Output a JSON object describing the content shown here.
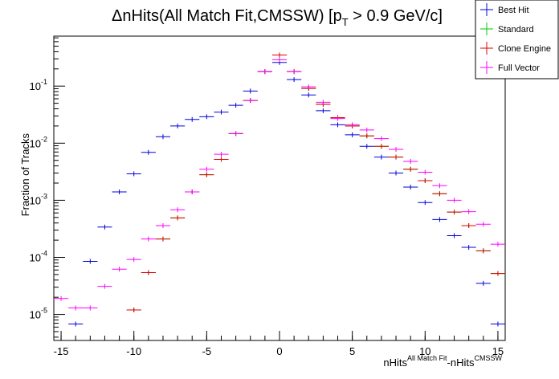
{
  "chart_data": {
    "type": "errorpoints",
    "title": {
      "text": "ΔnHits(All Match Fit,CMSSW) [p",
      "sub": "T",
      "rest": " > 0.9 GeV/c]"
    },
    "xlabel": {
      "text": "nHits",
      "sup": "All Match Fit",
      "text2": "-nHits",
      "sup2": "CMSSW"
    },
    "ylabel": "Fraction of Tracks",
    "log_y": true,
    "legend": "top-right",
    "x": [
      -15,
      -14,
      -13,
      -12,
      -11,
      -10,
      -9,
      -8,
      -7,
      -6,
      -5,
      -4,
      -3,
      -2,
      -1,
      0,
      1,
      2,
      3,
      4,
      5,
      6,
      7,
      8,
      9,
      10,
      11,
      12,
      13,
      14,
      15
    ],
    "series": [
      {
        "name": "Best Hit",
        "color": "#0000dd",
        "values": [
          null,
          6.8e-06,
          8.5e-05,
          0.00034,
          0.0014,
          0.0029,
          0.0069,
          0.013,
          0.02,
          0.026,
          0.029,
          0.035,
          0.046,
          0.082,
          0.18,
          0.26,
          0.13,
          0.07,
          0.037,
          0.021,
          0.014,
          0.0088,
          0.0057,
          0.003,
          0.0017,
          0.00091,
          0.00046,
          0.00024,
          0.00015,
          3.5e-05,
          6.8e-06
        ]
      },
      {
        "name": "Standard",
        "color": "#00cc00",
        "values": [
          null,
          null,
          null,
          null,
          null,
          1.2e-05,
          5.4e-05,
          0.00021,
          0.00049,
          0.0014,
          0.0028,
          0.0052,
          0.0147,
          0.056,
          0.18,
          0.35,
          0.18,
          0.091,
          0.048,
          0.028,
          0.02,
          0.0134,
          0.0088,
          0.0057,
          0.0035,
          0.0022,
          0.0013,
          0.00062,
          0.00036,
          0.00013,
          5.2e-05
        ]
      },
      {
        "name": "Clone Engine",
        "color": "#dd0000",
        "values": [
          null,
          null,
          null,
          null,
          null,
          1.2e-05,
          5.4e-05,
          0.00021,
          0.00049,
          0.0014,
          0.0028,
          0.0052,
          0.0147,
          0.056,
          0.18,
          0.35,
          0.18,
          0.091,
          0.048,
          0.028,
          0.02,
          0.0134,
          0.0088,
          0.0057,
          0.0035,
          0.0022,
          0.0013,
          0.00062,
          0.00036,
          0.00013,
          5.2e-05
        ]
      },
      {
        "name": "Full Vector",
        "color": "#ff00ff",
        "values": [
          1.9e-05,
          1.3e-05,
          1.3e-05,
          3.1e-05,
          6.2e-05,
          9.2e-05,
          0.00021,
          0.00036,
          0.00068,
          0.0014,
          0.0035,
          0.0064,
          0.0147,
          0.056,
          0.18,
          0.29,
          0.18,
          0.097,
          0.052,
          0.027,
          0.021,
          0.017,
          0.012,
          0.0078,
          0.0048,
          0.0031,
          0.0018,
          0.001,
          0.00063,
          0.00038,
          0.00017
        ]
      }
    ],
    "xlim": [
      -15.5,
      15.5
    ],
    "xticks": [
      -15,
      -10,
      -5,
      0,
      5,
      10,
      15
    ],
    "ylim": [
      3.5e-06,
      0.75
    ],
    "yticks": [
      {
        "value": 1e-05,
        "label": "10",
        "sup": "-5"
      },
      {
        "value": 0.0001,
        "label": "10",
        "sup": "-4"
      },
      {
        "value": 0.001,
        "label": "10",
        "sup": "-3"
      },
      {
        "value": 0.01,
        "label": "10",
        "sup": "-2"
      },
      {
        "value": 0.1,
        "label": "10",
        "sup": "-1"
      }
    ]
  }
}
